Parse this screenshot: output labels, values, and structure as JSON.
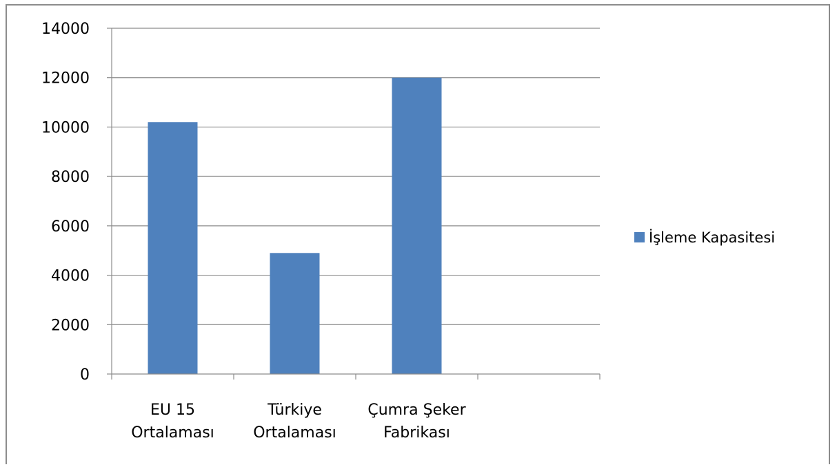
{
  "chart_data": {
    "type": "bar",
    "categories": [
      [
        "EU 15",
        "Ortalaması"
      ],
      [
        "Türkiye",
        "Ortalaması"
      ],
      [
        "Çumra Şeker",
        "Fabrikası"
      ],
      [
        ""
      ]
    ],
    "series": [
      {
        "name": "İşleme Kapasitesi",
        "color": "#4f81bd",
        "values": [
          10200,
          4900,
          12000,
          null
        ]
      }
    ],
    "ylim": [
      0,
      14000
    ],
    "yticks": [
      0,
      2000,
      4000,
      6000,
      8000,
      10000,
      12000,
      14000
    ],
    "grid": true,
    "legend_position": "right",
    "title": "",
    "xlabel": "",
    "ylabel": ""
  }
}
